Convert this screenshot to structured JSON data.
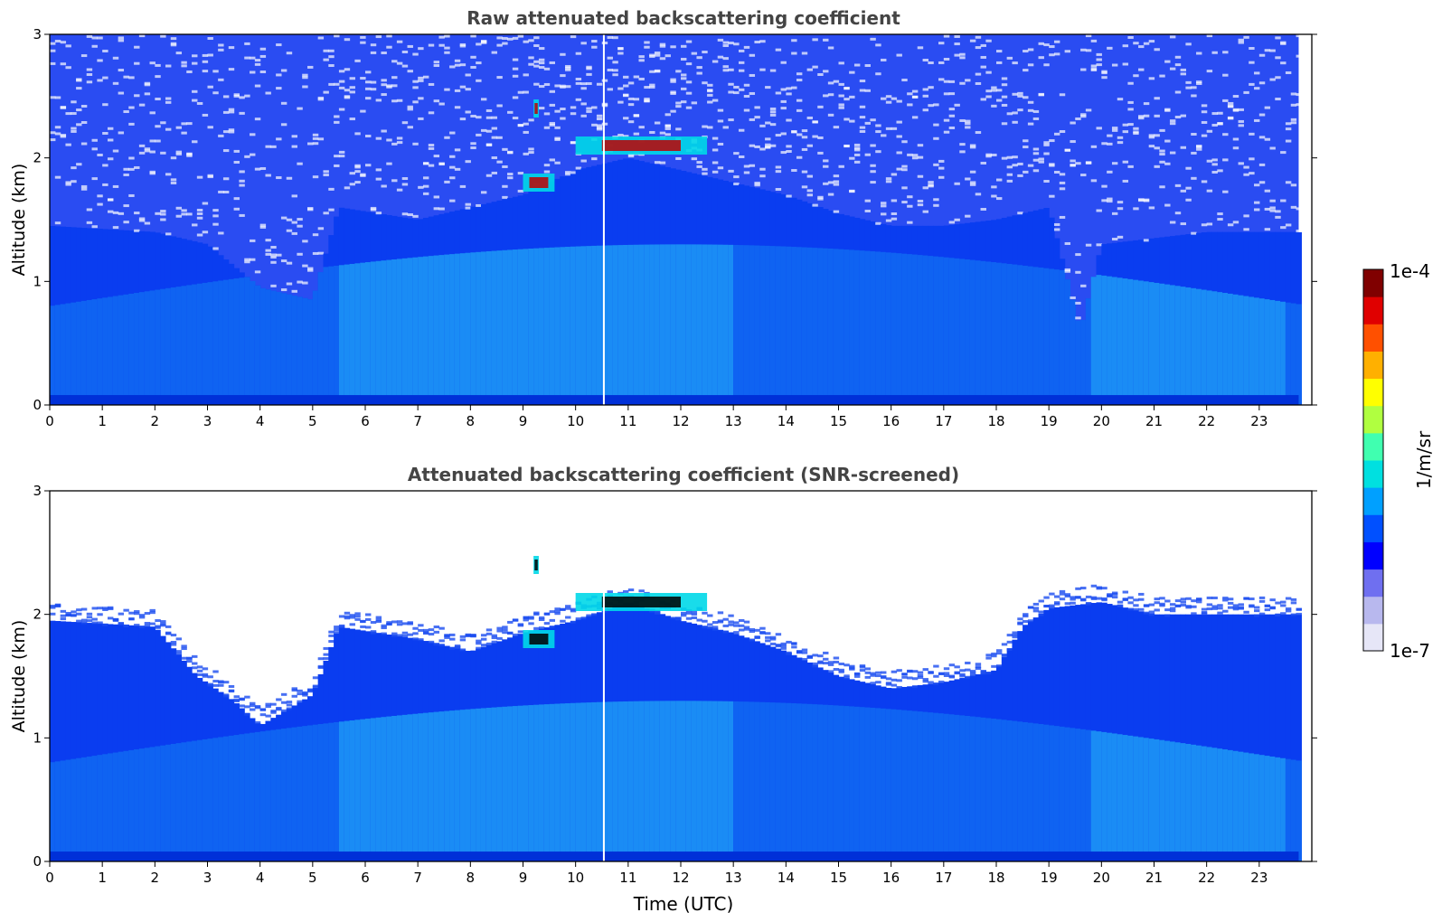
{
  "chart_data": [
    {
      "type": "heatmap",
      "title": "Raw attenuated backscattering coefficient",
      "xlabel": "",
      "ylabel": "Altitude (km)",
      "xlim": [
        0,
        24
      ],
      "ylim": [
        0,
        3
      ],
      "xticks": [
        0,
        1,
        2,
        3,
        4,
        5,
        6,
        7,
        8,
        9,
        10,
        11,
        12,
        13,
        14,
        15,
        16,
        17,
        18,
        19,
        20,
        21,
        22,
        23
      ],
      "yticks": [
        0,
        1,
        2,
        3
      ],
      "screened": false,
      "features": {
        "boundary_layer_top_km": [
          [
            0,
            1.45
          ],
          [
            2,
            1.4
          ],
          [
            3,
            1.3
          ],
          [
            4,
            0.95
          ],
          [
            5,
            0.85
          ],
          [
            5.5,
            1.6
          ],
          [
            7,
            1.5
          ],
          [
            8,
            1.6
          ],
          [
            9,
            1.7
          ],
          [
            10,
            1.9
          ],
          [
            11,
            2.0
          ],
          [
            12,
            1.9
          ],
          [
            13,
            1.8
          ],
          [
            14,
            1.7
          ],
          [
            15,
            1.55
          ],
          [
            16,
            1.45
          ],
          [
            17,
            1.45
          ],
          [
            18,
            1.5
          ],
          [
            19,
            1.6
          ],
          [
            19.6,
            0.6
          ],
          [
            20,
            1.3
          ],
          [
            22,
            1.4
          ],
          [
            23.75,
            1.4
          ]
        ],
        "elevated_cloud_layer": [
          {
            "x_range": [
              9.0,
              9.6
            ],
            "altitude_km": 1.8
          },
          {
            "x_range": [
              10.0,
              12.5
            ],
            "altitude_km": 2.1
          },
          {
            "x_range": [
              9.2,
              9.3
            ],
            "altitude_km": 2.4
          }
        ]
      }
    },
    {
      "type": "heatmap",
      "title": "Attenuated backscattering coefficient (SNR-screened)",
      "xlabel": "Time (UTC)",
      "ylabel": "Altitude (km)",
      "xlim": [
        0,
        24
      ],
      "ylim": [
        0,
        3
      ],
      "xticks": [
        0,
        1,
        2,
        3,
        4,
        5,
        6,
        7,
        8,
        9,
        10,
        11,
        12,
        13,
        14,
        15,
        16,
        17,
        18,
        19,
        20,
        21,
        22,
        23
      ],
      "yticks": [
        0,
        1,
        2,
        3
      ],
      "screened": true,
      "features": {
        "boundary_layer_top_km": [
          [
            0,
            1.95
          ],
          [
            2,
            1.9
          ],
          [
            2.8,
            1.5
          ],
          [
            3.5,
            1.3
          ],
          [
            4,
            1.1
          ],
          [
            5,
            1.35
          ],
          [
            5.5,
            1.9
          ],
          [
            7,
            1.8
          ],
          [
            8,
            1.7
          ],
          [
            9,
            1.85
          ],
          [
            10,
            1.95
          ],
          [
            11,
            2.1
          ],
          [
            12,
            1.95
          ],
          [
            13,
            1.85
          ],
          [
            14,
            1.7
          ],
          [
            15,
            1.5
          ],
          [
            16,
            1.4
          ],
          [
            17,
            1.45
          ],
          [
            18,
            1.55
          ],
          [
            18.5,
            1.9
          ],
          [
            19,
            2.05
          ],
          [
            20,
            2.1
          ],
          [
            21,
            2.0
          ],
          [
            22,
            2.0
          ],
          [
            23.75,
            2.0
          ]
        ],
        "elevated_cloud_layer": [
          {
            "x_range": [
              9.0,
              9.6
            ],
            "altitude_km": 1.8
          },
          {
            "x_range": [
              10.0,
              12.5
            ],
            "altitude_km": 2.1
          },
          {
            "x_range": [
              9.2,
              9.3
            ],
            "altitude_km": 2.4
          }
        ]
      }
    }
  ],
  "colorbar": {
    "label": "1/m/sr",
    "max_label": "1e-4",
    "min_label": "1e-7",
    "colors": [
      "#e6e6f7",
      "#b8b8ee",
      "#6f6ff0",
      "#0000ff",
      "#0050ff",
      "#00a0ff",
      "#00e0e0",
      "#40ffb0",
      "#b0ff40",
      "#ffff00",
      "#ffb000",
      "#ff5000",
      "#e00000",
      "#800000"
    ]
  }
}
